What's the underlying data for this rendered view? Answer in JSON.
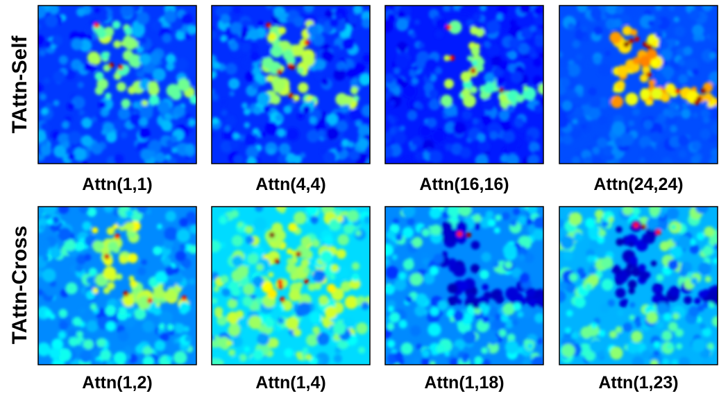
{
  "row_labels": [
    "TAttn-Self",
    "TAttn-Cross"
  ],
  "panels": [
    [
      {
        "caption": "Attn(1,1)"
      },
      {
        "caption": "Attn(4,4)"
      },
      {
        "caption": "Attn(16,16)"
      },
      {
        "caption": "Attn(24,24)"
      }
    ],
    [
      {
        "caption": "Attn(1,2)"
      },
      {
        "caption": "Attn(1,4)"
      },
      {
        "caption": "Attn(1,18)"
      },
      {
        "caption": "Attn(1,23)"
      }
    ]
  ]
}
